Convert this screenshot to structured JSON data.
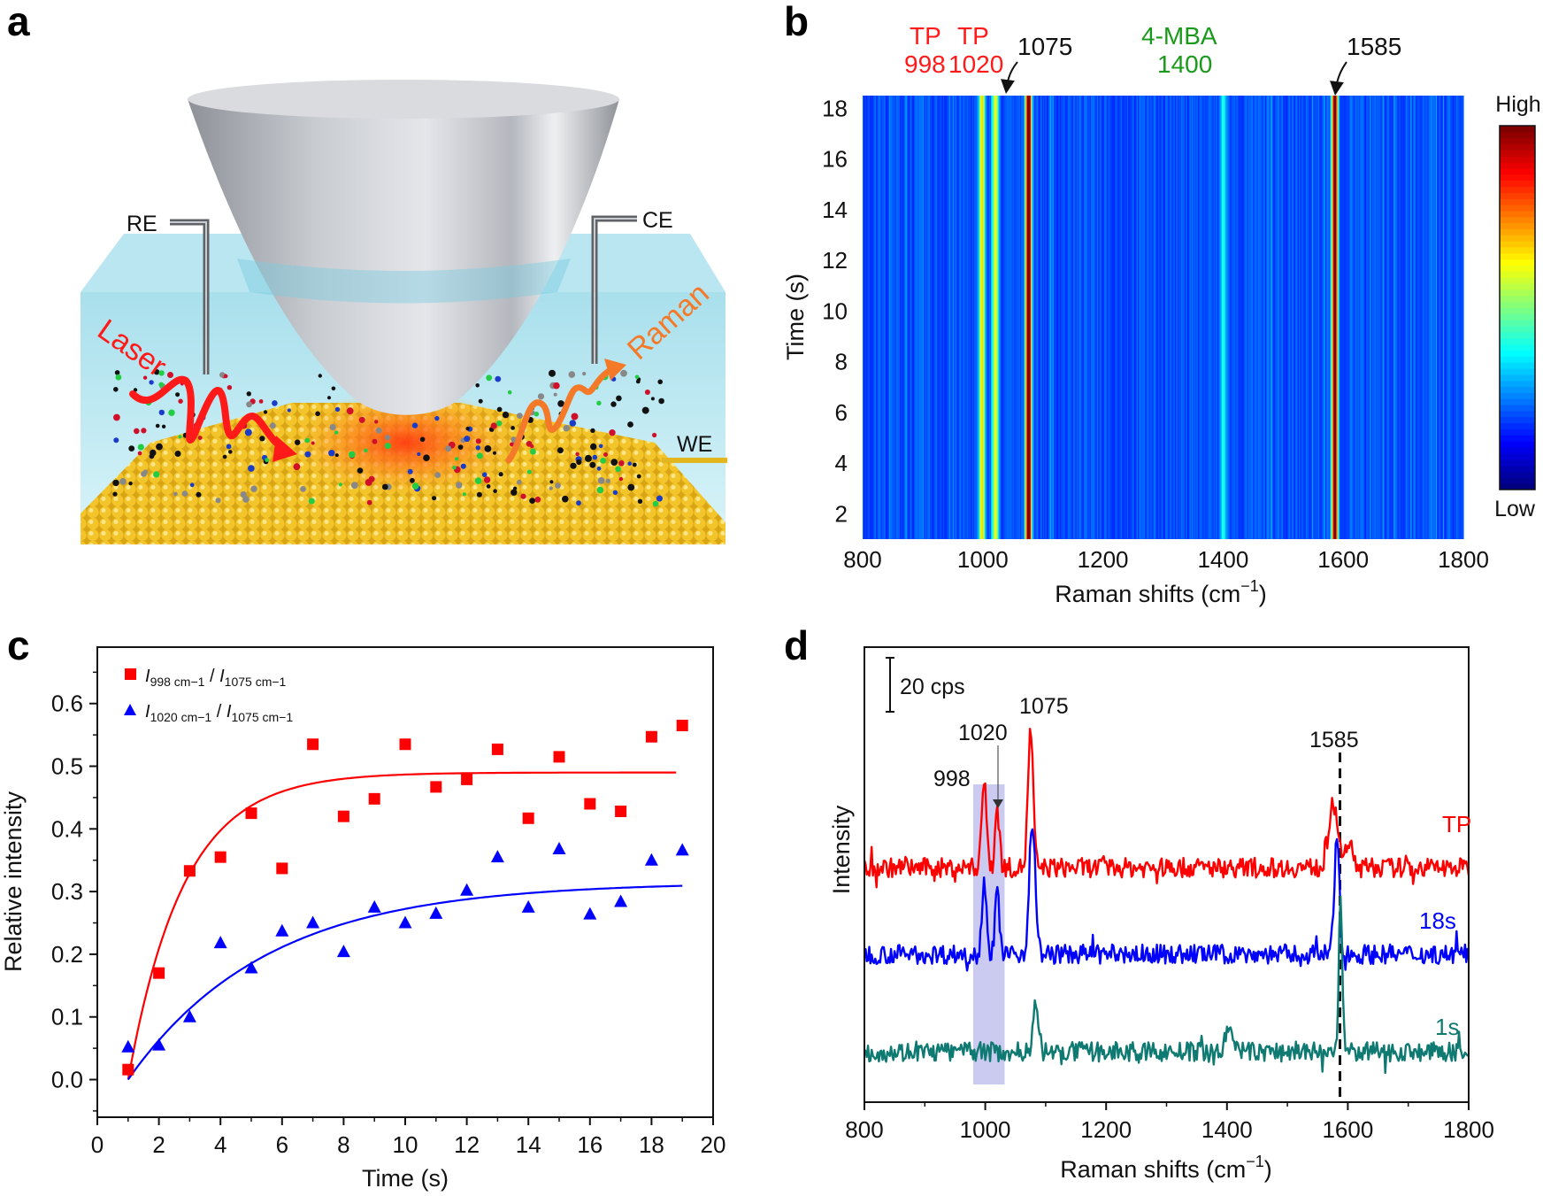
{
  "panels": {
    "a": "a",
    "b": "b",
    "c": "c",
    "d": "d"
  },
  "illustration": {
    "labels": {
      "re": "RE",
      "ce": "CE",
      "we": "WE",
      "laser": "Laser",
      "raman": "Raman"
    },
    "colors": {
      "water": "#bfeaf2",
      "gold": "#f0c22a",
      "laser": "#ff1a1a",
      "raman": "#f47a2a",
      "cone": "#b9bcc2"
    }
  },
  "chart_data": [
    {
      "panel": "b",
      "type": "heatmap",
      "xlabel": "Raman shifts (cm",
      "xlabel_sup": "−1",
      "xlabel_end": ")",
      "ylabel": "Time (s)",
      "xlim": [
        800,
        1800
      ],
      "ylim": [
        1,
        18.5
      ],
      "xticks": [
        "800",
        "1000",
        "1200",
        "1400",
        "1600",
        "1800"
      ],
      "yticks": [
        "2",
        "4",
        "6",
        "8",
        "10",
        "12",
        "14",
        "16",
        "18"
      ],
      "colorbar": {
        "high": "High",
        "low": "Low",
        "colormap": "jet"
      },
      "bands": [
        {
          "shift": 998,
          "level": 0.45
        },
        {
          "shift": 1020,
          "level": 0.42
        },
        {
          "shift": 1075,
          "level": 0.9
        },
        {
          "shift": 1400,
          "level": 0.2
        },
        {
          "shift": 1585,
          "level": 0.85
        }
      ],
      "annotations": [
        {
          "text": "TP",
          "color": "#ff1a1a"
        },
        {
          "text": "998",
          "color": "#ff1a1a"
        },
        {
          "text": "TP",
          "color": "#ff1a1a"
        },
        {
          "text": "1020",
          "color": "#ff1a1a"
        },
        {
          "text": "1075",
          "color": "#111111"
        },
        {
          "text": "4-MBA",
          "color": "#1a9a1a"
        },
        {
          "text": "1400",
          "color": "#1a9a1a"
        },
        {
          "text": "1585",
          "color": "#111111"
        }
      ]
    },
    {
      "panel": "c",
      "type": "scatter",
      "xlabel": "Time (s)",
      "ylabel": "Relative intensity",
      "xlim": [
        0,
        20
      ],
      "ylim": [
        -0.06,
        0.69
      ],
      "xticks": [
        "0",
        "2",
        "4",
        "6",
        "8",
        "10",
        "12",
        "14",
        "16",
        "18",
        "20"
      ],
      "yticks": [
        "0.0",
        "0.1",
        "0.2",
        "0.3",
        "0.4",
        "0.5",
        "0.6"
      ],
      "legend_position": "top-left",
      "series": [
        {
          "name": "I998 cm−1 / I1075 cm−1",
          "legend": {
            "i1": "I",
            "sub1": "998 cm−1",
            "sep": " / ",
            "i2": "I",
            "sub2": "1075 cm−1"
          },
          "marker": "square",
          "color": "#ff0000",
          "x": [
            1,
            2,
            3,
            4,
            5,
            6,
            7,
            8,
            9,
            10,
            11,
            12,
            13,
            14,
            15,
            16,
            17,
            18,
            19
          ],
          "y": [
            0.016,
            0.17,
            0.333,
            0.355,
            0.425,
            0.337,
            0.535,
            0.42,
            0.448,
            0.535,
            0.467,
            0.479,
            0.527,
            0.417,
            0.515,
            0.44,
            0.428,
            0.547,
            0.565
          ],
          "fit": {
            "plateau": 0.49,
            "tau": 1.8,
            "t0": 1,
            "t_end": 18.8
          }
        },
        {
          "name": "I1020 cm−1 / I1075 cm−1",
          "legend": {
            "i1": "I",
            "sub1": "1020 cm−1",
            "sep": " / ",
            "i2": "I",
            "sub2": "1075 cm−1"
          },
          "marker": "triangle",
          "color": "#0000ff",
          "x": [
            1,
            2,
            3,
            4,
            5,
            6,
            7,
            8,
            9,
            10,
            11,
            12,
            13,
            14,
            15,
            16,
            17,
            18,
            19
          ],
          "y": [
            0.052,
            0.055,
            0.1,
            0.218,
            0.178,
            0.237,
            0.25,
            0.204,
            0.275,
            0.25,
            0.265,
            0.302,
            0.355,
            0.275,
            0.368,
            0.264,
            0.284,
            0.35,
            0.366
          ],
          "fit": {
            "plateau": 0.315,
            "tau": 4.5,
            "t0": 1,
            "t_end": 19
          }
        }
      ]
    },
    {
      "panel": "d",
      "type": "line",
      "xlabel": "Raman shifts (cm",
      "xlabel_sup": "−1",
      "xlabel_end": ")",
      "ylabel": "Intensity",
      "xlim": [
        800,
        1800
      ],
      "ylim": [
        0,
        163
      ],
      "xticks": [
        "800",
        "1000",
        "1200",
        "1400",
        "1600",
        "1800"
      ],
      "scale_bar": {
        "label": "20 cps",
        "value": 20
      },
      "highlight_region": [
        980,
        1032
      ],
      "reference_line": 1587,
      "peak_labels": [
        "998",
        "1020",
        "1075",
        "1585"
      ],
      "series": [
        {
          "name": "TP",
          "color": "#ff0000",
          "baseline": 84,
          "peaks": [
            {
              "x": 998,
              "h": 30,
              "w": 6
            },
            {
              "x": 1020,
              "h": 22,
              "w": 5
            },
            {
              "x": 1075,
              "h": 49,
              "w": 6
            },
            {
              "x": 1575,
              "h": 24,
              "w": 9
            },
            {
              "x": 1600,
              "h": 8,
              "w": 12
            }
          ]
        },
        {
          "name": "18s",
          "color": "#0000ff",
          "baseline": 53,
          "peaks": [
            {
              "x": 998,
              "h": 28,
              "w": 5
            },
            {
              "x": 1020,
              "h": 22,
              "w": 5
            },
            {
              "x": 1078,
              "h": 47,
              "w": 7
            },
            {
              "x": 1582,
              "h": 42,
              "w": 6
            }
          ]
        },
        {
          "name": "1s",
          "color": "#0e7a72",
          "baseline": 18,
          "peaks": [
            {
              "x": 1083,
              "h": 17,
              "w": 6
            },
            {
              "x": 1405,
              "h": 8,
              "w": 10
            },
            {
              "x": 1588,
              "h": 55,
              "w": 4
            }
          ]
        }
      ]
    }
  ]
}
